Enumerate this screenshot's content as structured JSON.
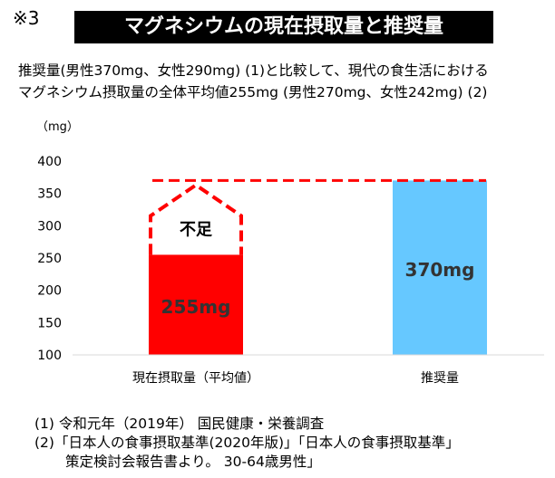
{
  "note": "※3",
  "title": "マグネシウムの現在摂取量と推奨量",
  "description": [
    "推奨量(男性370mg、女性290mg) (1)と比較して、現代の食生活における",
    "マグネシウム摂取量の全体平均値255mg (男性270mg、女性242mg) (2)"
  ],
  "chart_data": {
    "type": "bar",
    "ylabel": "（mg）",
    "ylim": [
      100,
      400
    ],
    "yticks": [
      100,
      150,
      200,
      250,
      300,
      350,
      400
    ],
    "categories": [
      "現在摂取量（平均値）",
      "推奨量"
    ],
    "values": [
      255,
      370
    ],
    "data_labels": [
      "255mg",
      "370mg"
    ],
    "colors": [
      "#ff0000",
      "#66c8ff"
    ],
    "reference_line": 370,
    "shortfall_label": "不足",
    "grid": false
  },
  "footnotes": [
    "(1) 令和元年（2019年） 国民健康・栄養調査",
    "(2)「日本人の食事摂取基準(2020年版)」「日本人の食事摂取基準」",
    "策定検討会報告書より。 30-64歳男性」"
  ]
}
